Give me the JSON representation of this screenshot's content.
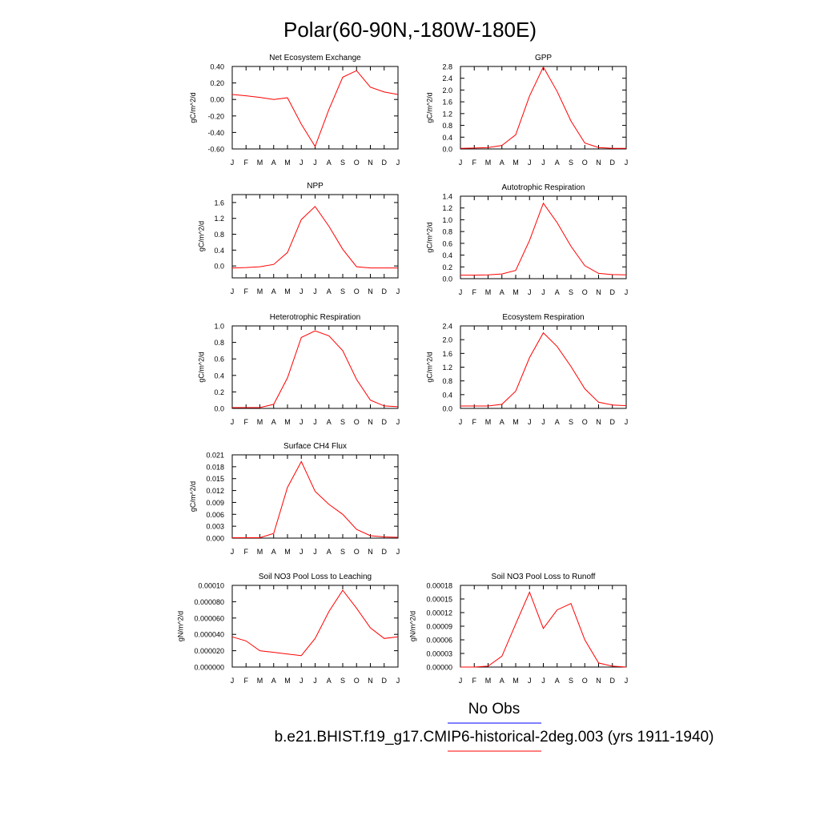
{
  "page": {
    "title": "Polar(60-90N,-180W-180E)",
    "legend": {
      "entries": [
        {
          "label": "No Obs",
          "color": "#0000ff"
        },
        {
          "label": "b.e21.BHIST.f19_g17.CMIP6-historical-2deg.003 (yrs 1911-1940)",
          "color": "#ff0000"
        }
      ]
    }
  },
  "chart_data": [
    {
      "type": "line",
      "title": "Net Ecosystem Exchange",
      "ylabel": "gC/m^2/d",
      "categories": [
        "J",
        "F",
        "M",
        "A",
        "M",
        "J",
        "J",
        "A",
        "S",
        "O",
        "N",
        "D",
        "J"
      ],
      "ylim": [
        -0.6,
        0.4
      ],
      "yticks": [
        "0.40",
        "0.20",
        "0.00",
        "-0.20",
        "-0.40",
        "-0.60"
      ],
      "series": [
        {
          "color": "#ff0000",
          "values": [
            0.06,
            0.045,
            0.025,
            0.0,
            0.02,
            -0.3,
            -0.57,
            -0.12,
            0.27,
            0.35,
            0.15,
            0.09,
            0.06
          ]
        }
      ]
    },
    {
      "type": "line",
      "title": "GPP",
      "ylabel": "gC/m^2/d",
      "categories": [
        "J",
        "F",
        "M",
        "A",
        "M",
        "J",
        "J",
        "A",
        "S",
        "O",
        "N",
        "D",
        "J"
      ],
      "ylim": [
        0,
        2.8
      ],
      "yticks": [
        "2.8",
        "2.4",
        "2.0",
        "1.6",
        "1.2",
        "0.8",
        "0.4",
        "0.0"
      ],
      "series": [
        {
          "color": "#ff0000",
          "values": [
            0.02,
            0.03,
            0.05,
            0.12,
            0.48,
            1.8,
            2.78,
            1.95,
            0.95,
            0.2,
            0.05,
            0.02,
            0.02
          ]
        }
      ]
    },
    {
      "type": "line",
      "title": "NPP",
      "ylabel": "gC/m^2/d",
      "categories": [
        "J",
        "F",
        "M",
        "A",
        "M",
        "J",
        "J",
        "A",
        "S",
        "O",
        "N",
        "D",
        "J"
      ],
      "ylim": [
        -0.3,
        1.8
      ],
      "yticks": [
        "1.6",
        "1.2",
        "0.8",
        "0.4",
        "0.0"
      ],
      "series": [
        {
          "color": "#ff0000",
          "values": [
            -0.05,
            -0.04,
            -0.02,
            0.04,
            0.34,
            1.17,
            1.5,
            1.0,
            0.42,
            -0.02,
            -0.05,
            -0.05,
            -0.05
          ]
        }
      ]
    },
    {
      "type": "line",
      "title": "Autotrophic Respiration",
      "ylabel": "gC/m^2/d",
      "categories": [
        "J",
        "F",
        "M",
        "A",
        "M",
        "J",
        "J",
        "A",
        "S",
        "O",
        "N",
        "D",
        "J"
      ],
      "ylim": [
        0,
        1.4
      ],
      "yticks": [
        "1.4",
        "1.2",
        "1.0",
        "0.8",
        "0.6",
        "0.4",
        "0.2",
        "0.0"
      ],
      "series": [
        {
          "color": "#ff0000",
          "values": [
            0.06,
            0.06,
            0.065,
            0.08,
            0.14,
            0.65,
            1.28,
            0.95,
            0.55,
            0.22,
            0.09,
            0.07,
            0.065
          ]
        }
      ]
    },
    {
      "type": "line",
      "title": "Heterotrophic Respiration",
      "ylabel": "gC/m^2/d",
      "categories": [
        "J",
        "F",
        "M",
        "A",
        "M",
        "J",
        "J",
        "A",
        "S",
        "O",
        "N",
        "D",
        "J"
      ],
      "ylim": [
        0,
        1.0
      ],
      "yticks": [
        "1.0",
        "0.8",
        "0.6",
        "0.4",
        "0.2",
        "0.0"
      ],
      "series": [
        {
          "color": "#ff0000",
          "values": [
            0.01,
            0.01,
            0.01,
            0.05,
            0.37,
            0.86,
            0.94,
            0.88,
            0.7,
            0.35,
            0.1,
            0.03,
            0.02
          ]
        }
      ]
    },
    {
      "type": "line",
      "title": "Ecosystem Respiration",
      "ylabel": "gC/m^2/d",
      "categories": [
        "J",
        "F",
        "M",
        "A",
        "M",
        "J",
        "J",
        "A",
        "S",
        "O",
        "N",
        "D",
        "J"
      ],
      "ylim": [
        0,
        2.4
      ],
      "yticks": [
        "2.4",
        "2.0",
        "1.6",
        "1.2",
        "0.8",
        "0.4",
        "0.0"
      ],
      "series": [
        {
          "color": "#ff0000",
          "values": [
            0.07,
            0.07,
            0.07,
            0.12,
            0.5,
            1.48,
            2.2,
            1.8,
            1.22,
            0.57,
            0.18,
            0.1,
            0.08
          ]
        }
      ]
    },
    {
      "type": "line",
      "title": "Surface CH4 Flux",
      "ylabel": "gC/m^2/d",
      "categories": [
        "J",
        "F",
        "M",
        "A",
        "M",
        "J",
        "J",
        "A",
        "S",
        "O",
        "N",
        "D",
        "J"
      ],
      "ylim": [
        0,
        0.021
      ],
      "yticks": [
        "0.021",
        "0.018",
        "0.015",
        "0.012",
        "0.009",
        "0.006",
        "0.003",
        "0.000"
      ],
      "series": [
        {
          "color": "#ff0000",
          "values": [
            0.0001,
            0.0001,
            0.0001,
            0.0012,
            0.0128,
            0.0193,
            0.0118,
            0.0085,
            0.006,
            0.0022,
            0.0006,
            0.0003,
            0.0002
          ]
        }
      ]
    },
    {
      "type": "line",
      "title": "Soil NO3 Pool Loss to Leaching",
      "ylabel": "gN/m^2/d",
      "categories": [
        "J",
        "F",
        "M",
        "A",
        "M",
        "J",
        "J",
        "A",
        "S",
        "O",
        "N",
        "D",
        "J"
      ],
      "ylim": [
        0,
        0.0001
      ],
      "yticks": [
        "0.00010",
        "0.000080",
        "0.000060",
        "0.000040",
        "0.000020",
        "0.000000"
      ],
      "series": [
        {
          "color": "#ff0000",
          "values": [
            3.7e-05,
            3.2e-05,
            2e-05,
            1.8e-05,
            1.6e-05,
            1.4e-05,
            3.5e-05,
            6.8e-05,
            9.4e-05,
            7.2e-05,
            4.8e-05,
            3.5e-05,
            3.7e-05
          ]
        }
      ]
    },
    {
      "type": "line",
      "title": "Soil NO3 Pool Loss to Runoff",
      "ylabel": "gN/m^2/d",
      "categories": [
        "J",
        "F",
        "M",
        "A",
        "M",
        "J",
        "J",
        "A",
        "S",
        "O",
        "N",
        "D",
        "J"
      ],
      "ylim": [
        0,
        0.00018
      ],
      "yticks": [
        "0.00018",
        "0.00015",
        "0.00012",
        "0.00009",
        "0.00006",
        "0.00003",
        "0.00000"
      ],
      "series": [
        {
          "color": "#ff0000",
          "values": [
            0.0,
            0.0,
            2e-06,
            2.4e-05,
            9.5e-05,
            0.000165,
            8.5e-05,
            0.000126,
            0.00014,
            6e-05,
            9e-06,
            2e-06,
            0.0
          ]
        }
      ]
    }
  ]
}
